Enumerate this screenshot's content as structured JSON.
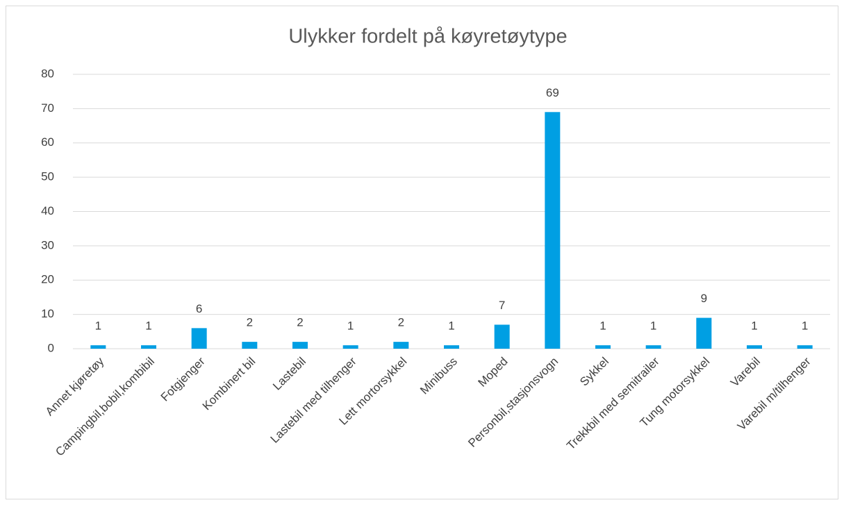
{
  "chart_data": {
    "type": "bar",
    "title": "Ulykker fordelt på køyretøytype",
    "categories": [
      "Annet kjøretøy",
      "Campingbil,bobil,kombibil",
      "Fotgjenger",
      "Kombinert bil",
      "Lastebil",
      "Lastebil med tilhenger",
      "Lett mortorsykkel",
      "Minibuss",
      "Moped",
      "Personbil,stasjonsvogn",
      "Sykkel",
      "Trekkbil med semitrailer",
      "Tung motorsykkel",
      "Varebil",
      "Varebil m/tilhenger"
    ],
    "values": [
      1,
      1,
      6,
      2,
      2,
      1,
      2,
      1,
      7,
      69,
      1,
      1,
      9,
      1,
      1
    ],
    "color": "#009fe3",
    "ylim": [
      0,
      80
    ],
    "yticks": [
      0,
      10,
      20,
      30,
      40,
      50,
      60,
      70,
      80
    ],
    "grid": true
  }
}
